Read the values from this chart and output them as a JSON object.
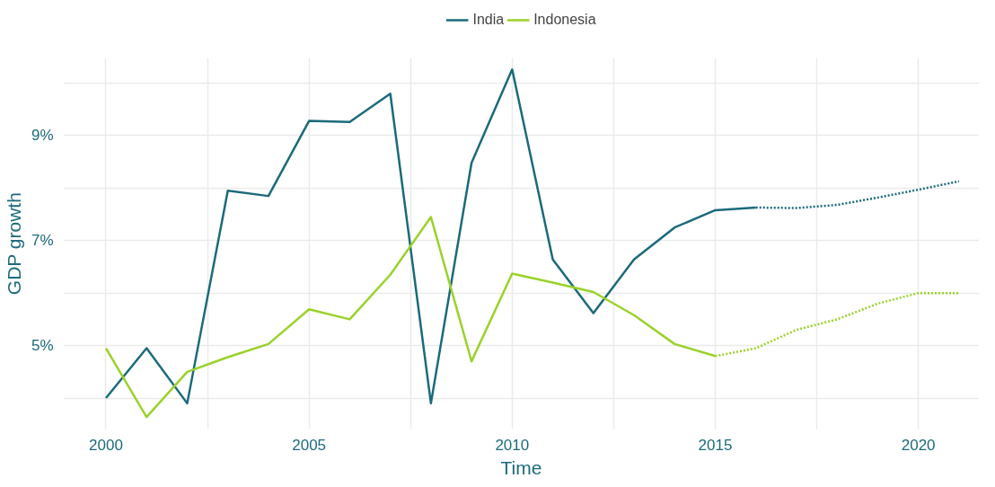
{
  "chart_data": {
    "type": "line",
    "xlabel": "Time",
    "ylabel": "GDP growth",
    "xlim": [
      1998.95,
      2021.5
    ],
    "ylim": [
      3.41,
      10.48
    ],
    "xticks": [
      2000,
      {
        "value": 2002.5,
        "label": null
      },
      2005,
      {
        "value": 2007.5,
        "label": null
      },
      2010,
      {
        "value": 2012.5,
        "label": null
      },
      2015,
      {
        "value": 2017.5,
        "label": null
      },
      2020
    ],
    "yticks": [
      {
        "value": 4,
        "label": null
      },
      {
        "value": 5,
        "label": "5%"
      },
      {
        "value": 6,
        "label": null
      },
      {
        "value": 7,
        "label": "7%"
      },
      {
        "value": 8,
        "label": null
      },
      {
        "value": 9,
        "label": "9%"
      },
      {
        "value": 10,
        "label": null
      }
    ],
    "grid": true,
    "legend": "top",
    "marker": "none",
    "series": [
      {
        "name": "India",
        "color": "#1b6a7b",
        "line_style": "solid",
        "x": [
          2000,
          2001,
          2002,
          2003,
          2004,
          2005,
          2006,
          2007,
          2008,
          2009,
          2010,
          2011,
          2012,
          2013,
          2014,
          2015,
          2016
        ],
        "values": [
          4.0,
          4.95,
          3.9,
          7.95,
          7.85,
          9.28,
          9.26,
          9.8,
          3.9,
          8.48,
          10.26,
          6.64,
          5.62,
          6.64,
          7.25,
          7.58,
          7.63
        ]
      },
      {
        "name": "Indonesia",
        "color": "#9ad22a",
        "line_style": "solid",
        "x": [
          2000,
          2001,
          2002,
          2003,
          2004,
          2005,
          2006,
          2007,
          2008,
          2009,
          2010,
          2011,
          2012,
          2013,
          2014,
          2015
        ],
        "values": [
          4.95,
          3.64,
          4.5,
          4.78,
          5.03,
          5.69,
          5.5,
          6.35,
          7.45,
          4.7,
          6.37,
          6.2,
          6.02,
          5.58,
          5.03,
          4.8
        ]
      },
      {
        "color": "#1b6a7b",
        "line_style": "dotted",
        "x": [
          2016,
          2017,
          2018,
          2019,
          2020,
          2021
        ],
        "values": [
          7.63,
          7.62,
          7.68,
          7.82,
          7.97,
          8.13
        ]
      },
      {
        "color": "#9ad22a",
        "line_style": "dotted",
        "x": [
          2015,
          2016,
          2017,
          2018,
          2019,
          2020,
          2021
        ],
        "values": [
          4.8,
          4.95,
          5.3,
          5.5,
          5.8,
          6.0,
          6.0
        ]
      }
    ]
  }
}
